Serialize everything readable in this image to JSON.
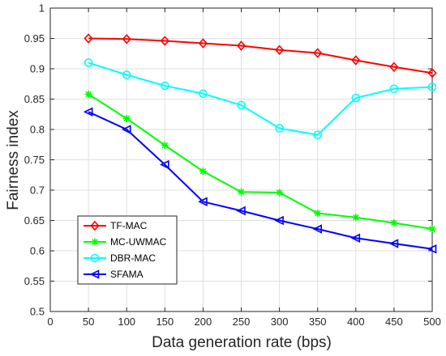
{
  "chart_data": {
    "type": "line",
    "title": "",
    "xlabel": "Data generation rate (bps)",
    "ylabel": "Fairness index",
    "xlim": [
      0,
      500
    ],
    "ylim": [
      0.5,
      1
    ],
    "x_ticks": [
      0,
      50,
      100,
      150,
      200,
      250,
      300,
      350,
      400,
      450,
      500
    ],
    "y_ticks": [
      0.5,
      0.55,
      0.6,
      0.65,
      0.7,
      0.75,
      0.8,
      0.85,
      0.9,
      0.95,
      1
    ],
    "x_tick_labels": [
      "0",
      "50",
      "100",
      "150",
      "200",
      "250",
      "300",
      "350",
      "400",
      "450",
      "500"
    ],
    "y_tick_labels": [
      "0.5",
      "0.55",
      "0.6",
      "0.65",
      "0.7",
      "0.75",
      "0.8",
      "0.85",
      "0.9",
      "0.95",
      "1"
    ],
    "grid": true,
    "legend_position": "bottom-left",
    "x": [
      50,
      100,
      150,
      200,
      250,
      300,
      350,
      400,
      450,
      500
    ],
    "series": [
      {
        "name": "TF-MAC",
        "color": "#ff0000",
        "marker": "diamond",
        "values": [
          0.95,
          0.949,
          0.946,
          0.942,
          0.938,
          0.931,
          0.926,
          0.914,
          0.903,
          0.893
        ]
      },
      {
        "name": "MC-UWMAC",
        "color": "#00ff00",
        "marker": "asterisk",
        "values": [
          0.858,
          0.818,
          0.774,
          0.731,
          0.697,
          0.696,
          0.662,
          0.655,
          0.646,
          0.636
        ]
      },
      {
        "name": "DBR-MAC",
        "color": "#00ffff",
        "marker": "circle",
        "values": [
          0.91,
          0.89,
          0.872,
          0.859,
          0.84,
          0.802,
          0.791,
          0.852,
          0.867,
          0.87
        ]
      },
      {
        "name": "SFAMA",
        "color": "#0000ff",
        "marker": "triangle-left",
        "values": [
          0.829,
          0.8,
          0.742,
          0.681,
          0.666,
          0.65,
          0.636,
          0.621,
          0.612,
          0.603
        ]
      }
    ]
  }
}
